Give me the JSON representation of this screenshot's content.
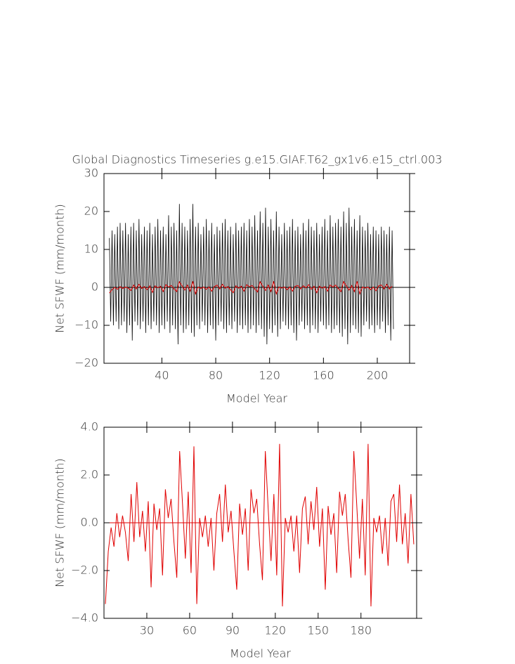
{
  "chart_data": [
    {
      "type": "line",
      "title": "Global Diagnostics Timeseries g.e15.GIAF.T62_gx1v6.e15_ctrl.003",
      "x_label": "Model Year",
      "y_label": "Net SFWF (mm/month)",
      "xlim": [
        -3,
        224
      ],
      "xticks": [
        40,
        80,
        120,
        160,
        200
      ],
      "ylim": [
        -20,
        30
      ],
      "yticks": [
        {
          "value": -20,
          "label": "−20"
        },
        {
          "value": -10,
          "label": "−10"
        },
        0,
        10,
        20,
        30
      ],
      "series": [
        {
          "color": "#000000",
          "x": [
            1,
            2,
            3,
            4,
            5,
            6,
            7,
            8,
            9,
            10,
            11,
            12,
            13,
            14,
            15,
            16,
            17,
            18,
            19,
            20,
            21,
            22,
            23,
            24,
            25,
            26,
            27,
            28,
            29,
            30,
            31,
            32,
            33,
            34,
            35,
            36,
            37,
            38,
            39,
            40,
            41,
            42,
            43,
            44,
            45,
            46,
            47,
            48,
            49,
            50,
            51,
            52,
            53,
            54,
            55,
            56,
            57,
            58,
            59,
            60,
            61,
            62,
            63,
            64,
            65,
            66,
            67,
            68,
            69,
            70,
            71,
            72,
            73,
            74,
            75,
            76,
            77,
            78,
            79,
            80,
            81,
            82,
            83,
            84,
            85,
            86,
            87,
            88,
            89,
            90,
            91,
            92,
            93,
            94,
            95,
            96,
            97,
            98,
            99,
            100,
            101,
            102,
            103,
            104,
            105,
            106,
            107,
            108,
            109,
            110,
            111,
            112,
            113,
            114,
            115,
            116,
            117,
            118,
            119,
            120,
            121,
            122,
            123,
            124,
            125,
            126,
            127,
            128,
            129,
            130,
            131,
            132,
            133,
            134,
            135,
            136,
            137,
            138,
            139,
            140,
            141,
            142,
            143,
            144,
            145,
            146,
            147,
            148,
            149,
            150,
            151,
            152,
            153,
            154,
            155,
            156,
            157,
            158,
            159,
            160,
            161,
            162,
            163,
            164,
            165,
            166,
            167,
            168,
            169,
            170,
            171,
            172,
            173,
            174,
            175,
            176,
            177,
            178,
            179,
            180,
            181,
            182,
            183,
            184,
            185,
            186,
            187,
            188,
            189,
            190,
            191,
            192,
            193,
            194,
            195,
            196,
            197,
            198,
            199,
            200,
            201,
            202,
            203,
            204,
            205,
            206,
            207,
            208,
            209,
            210,
            211,
            212
          ],
          "values": [
            13,
            -9,
            15,
            -10,
            14,
            -9,
            16,
            -11,
            17,
            -10,
            15,
            -9,
            17,
            -12,
            14,
            -10,
            16,
            -14,
            17,
            -9,
            15,
            -10,
            18,
            -11,
            14,
            -9,
            16,
            -12,
            15,
            -10,
            17,
            -11,
            14,
            -9,
            16,
            -10,
            18,
            -12,
            15,
            -10,
            16,
            -11,
            14,
            -9,
            19,
            -12,
            16,
            -10,
            17,
            -11,
            15,
            -15,
            22,
            -10,
            17,
            -12,
            16,
            -11,
            15,
            -10,
            18,
            -12,
            22,
            -13,
            16,
            -10,
            17,
            -11,
            14,
            -9,
            16,
            -10,
            18,
            -12,
            15,
            -10,
            17,
            -11,
            14,
            -14,
            16,
            -10,
            15,
            -9,
            17,
            -11,
            18,
            -12,
            15,
            -10,
            16,
            -11,
            14,
            -9,
            17,
            -12,
            15,
            -10,
            16,
            -11,
            17,
            -10,
            15,
            -12,
            18,
            -11,
            16,
            -10,
            19,
            -12,
            15,
            -10,
            20,
            -11,
            17,
            -13,
            21,
            -15,
            16,
            -11,
            18,
            -12,
            15,
            -10,
            20,
            -13,
            16,
            -11,
            14,
            -9,
            17,
            -10,
            15,
            -11,
            16,
            -10,
            18,
            -12,
            15,
            -14,
            16,
            -10,
            14,
            -9,
            17,
            -11,
            15,
            -10,
            18,
            -12,
            16,
            -10,
            15,
            -11,
            17,
            -12,
            14,
            -9,
            16,
            -10,
            18,
            -11,
            15,
            -10,
            19,
            -12,
            16,
            -11,
            17,
            -10,
            18,
            -12,
            16,
            -13,
            20,
            -11,
            17,
            -15,
            21,
            -12,
            16,
            -10,
            18,
            -11,
            15,
            -12,
            19,
            -13,
            16,
            -10,
            15,
            -9,
            17,
            -11,
            14,
            -10,
            16,
            -12,
            15,
            -10,
            14,
            -11,
            16,
            -9,
            15,
            -12,
            14,
            -10,
            16,
            -14,
            15,
            -11
          ]
        },
        {
          "color": "#e00000",
          "x": [
            1,
            3,
            5,
            7,
            9,
            11,
            13,
            15,
            17,
            19,
            21,
            23,
            25,
            27,
            29,
            31,
            33,
            35,
            37,
            39,
            41,
            43,
            45,
            47,
            49,
            51,
            53,
            55,
            57,
            59,
            61,
            63,
            65,
            67,
            69,
            71,
            73,
            75,
            77,
            79,
            81,
            83,
            85,
            87,
            89,
            91,
            93,
            95,
            97,
            99,
            101,
            103,
            105,
            107,
            109,
            111,
            113,
            115,
            117,
            119,
            121,
            123,
            125,
            127,
            129,
            131,
            133,
            135,
            137,
            139,
            141,
            143,
            145,
            147,
            149,
            151,
            153,
            155,
            157,
            159,
            161,
            163,
            165,
            167,
            169,
            171,
            173,
            175,
            177,
            179,
            181,
            183,
            185,
            187,
            189,
            191,
            193,
            195,
            197,
            199,
            201,
            203,
            205,
            207,
            209,
            211
          ],
          "values": [
            -1.5,
            -0.6,
            0,
            -0.5,
            0.2,
            -0.3,
            0.1,
            -0.2,
            -0.8,
            0.6,
            -0.4,
            0.8,
            -0.3,
            0.2,
            -0.6,
            0.4,
            -1.3,
            0.4,
            -0.1,
            0.3,
            -1.1,
            0.7,
            0.1,
            0.5,
            -0.4,
            -1.1,
            1.5,
            0.4,
            -0.7,
            0.6,
            -1.0,
            1.6,
            -1.7,
            0.1,
            -0.3,
            0.1,
            -0.5,
            0.1,
            -1.0,
            0.2,
            0.6,
            -0.4,
            0.8,
            -0.2,
            0.2,
            -0.6,
            -1.4,
            0.4,
            -0.2,
            0.3,
            -1.0,
            0.7,
            0.2,
            0.5,
            -0.4,
            -1.2,
            1.5,
            0.3,
            -0.8,
            0.6,
            -1.1,
            1.6,
            -1.7,
            0.1,
            -0.2,
            0.1,
            -0.6,
            0.1,
            -1.0,
            0.3,
            0.5,
            -0.4,
            0.4,
            -0.1,
            0.7,
            -0.5,
            0.3,
            -1.4,
            0.3,
            -0.2,
            0.2,
            -1.0,
            0.6,
            0.1,
            0.6,
            -0.3,
            -1.1,
            1.5,
            0.4,
            -0.7,
            0.5,
            -1.1,
            1.6,
            -1.7,
            0.1,
            -0.2,
            0.1,
            -0.6,
            0.1,
            -0.9,
            0.4,
            0.6,
            -0.4,
            0.8,
            -0.4,
            0.3
          ]
        }
      ]
    },
    {
      "type": "line",
      "x_label": "Model Year",
      "y_label": "Net SFWF (mm/month)",
      "xlim": [
        0,
        219
      ],
      "xticks": [
        30,
        60,
        90,
        120,
        150,
        180
      ],
      "ylim": [
        -4,
        4
      ],
      "yticks": [
        {
          "value": -4,
          "label": "−4.0"
        },
        {
          "value": -2,
          "label": "−2.0"
        },
        {
          "value": 0,
          "label": "0.0"
        },
        {
          "value": 2,
          "label": "2.0"
        },
        {
          "value": 4,
          "label": "4.0"
        }
      ],
      "series": [
        {
          "color": "#e00000",
          "x": [
            1,
            3,
            5,
            7,
            9,
            11,
            13,
            15,
            17,
            19,
            21,
            23,
            25,
            27,
            29,
            31,
            33,
            35,
            37,
            39,
            41,
            43,
            45,
            47,
            49,
            51,
            53,
            55,
            57,
            59,
            61,
            63,
            65,
            67,
            69,
            71,
            73,
            75,
            77,
            79,
            81,
            83,
            85,
            87,
            89,
            91,
            93,
            95,
            97,
            99,
            101,
            103,
            105,
            107,
            109,
            111,
            113,
            115,
            117,
            119,
            121,
            123,
            125,
            127,
            129,
            131,
            133,
            135,
            137,
            139,
            141,
            143,
            145,
            147,
            149,
            151,
            153,
            155,
            157,
            159,
            161,
            163,
            165,
            167,
            169,
            171,
            173,
            175,
            177,
            179,
            181,
            183,
            185,
            187,
            189,
            191,
            193,
            195,
            197,
            199,
            201,
            203,
            205,
            207,
            209,
            211,
            213,
            215,
            217
          ],
          "values": [
            -3.4,
            -1.2,
            -0.2,
            -1.0,
            0.4,
            -0.6,
            0.3,
            -0.4,
            -1.6,
            1.2,
            -0.8,
            1.7,
            -0.6,
            0.5,
            -1.2,
            0.9,
            -2.7,
            0.8,
            -0.3,
            0.6,
            -2.2,
            1.4,
            0.2,
            1.0,
            -0.8,
            -2.3,
            3.0,
            0.8,
            -1.5,
            1.3,
            -2.1,
            3.2,
            -3.4,
            0.2,
            -0.6,
            0.3,
            -1.0,
            0.2,
            -2.0,
            0.4,
            1.2,
            -0.8,
            1.6,
            -0.4,
            0.5,
            -1.2,
            -2.8,
            0.8,
            -0.5,
            0.6,
            -2.0,
            1.4,
            0.4,
            1.0,
            -0.9,
            -2.4,
            3.0,
            0.6,
            -1.6,
            1.2,
            -2.2,
            3.3,
            -3.5,
            0.2,
            -0.4,
            0.3,
            -1.2,
            0.3,
            -2.1,
            0.6,
            1.1,
            -0.9,
            0.9,
            -0.3,
            1.5,
            -1.0,
            0.6,
            -2.8,
            0.7,
            -0.5,
            0.4,
            -2.1,
            1.3,
            0.3,
            1.2,
            -0.7,
            -2.3,
            3.0,
            0.8,
            -1.5,
            1.0,
            -2.2,
            3.3,
            -3.5,
            0.2,
            -0.4,
            0.3,
            -1.3,
            0.2,
            -1.8,
            0.9,
            1.2,
            -0.8,
            1.6,
            -0.9,
            0.4,
            -1.7,
            1.2,
            -0.9
          ]
        }
      ]
    }
  ]
}
